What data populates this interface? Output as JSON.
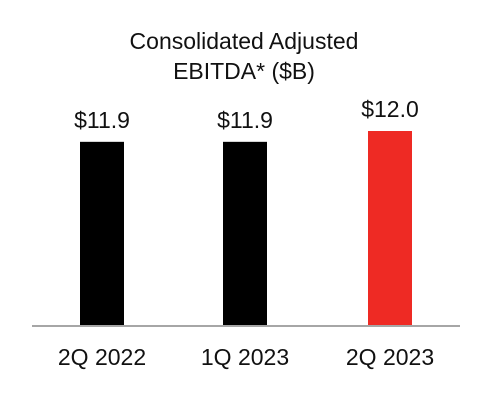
{
  "chart_data": {
    "type": "bar",
    "title_lines": [
      "Consolidated Adjusted",
      "EBITDA* ($B)"
    ],
    "categories": [
      "2Q 2022",
      "1Q 2023",
      "2Q 2023"
    ],
    "values": [
      11.9,
      11.9,
      12.0
    ],
    "value_labels": [
      "$11.9",
      "$11.9",
      "$12.0"
    ],
    "bar_colors": [
      "#000000",
      "#000000",
      "#ee2a24"
    ],
    "axis_color": "#a6a6a6",
    "ylim": [
      10.2,
      12.0
    ],
    "grid": false,
    "legend": "none"
  }
}
